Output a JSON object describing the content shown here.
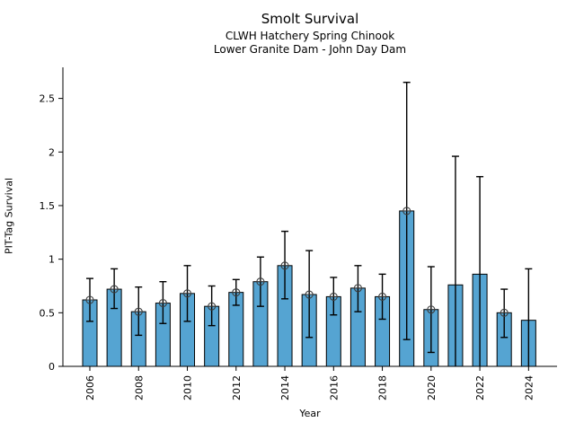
{
  "figure": {
    "title": "Smolt Survival",
    "subtitle1": "CLWH Hatchery Spring Chinook",
    "subtitle2": "Lower Granite Dam - John Day Dam",
    "xlabel": "Year",
    "ylabel": "PIT-Tag Survival"
  },
  "chart_data": {
    "type": "bar",
    "title": "Smolt Survival",
    "subtitle": [
      "CLWH Hatchery Spring Chinook",
      "Lower Granite Dam - John Day Dam"
    ],
    "xlabel": "Year",
    "ylabel": "PIT-Tag Survival",
    "categories": [
      2006,
      2007,
      2008,
      2009,
      2010,
      2011,
      2012,
      2013,
      2014,
      2015,
      2016,
      2017,
      2018,
      2019,
      2020,
      2021,
      2022,
      2023,
      2024
    ],
    "values": [
      0.62,
      0.72,
      0.51,
      0.59,
      0.68,
      0.56,
      0.69,
      0.79,
      0.94,
      0.67,
      0.65,
      0.73,
      0.65,
      1.45,
      0.53,
      0.76,
      0.86,
      0.5,
      0.43
    ],
    "error_low": [
      0.42,
      0.54,
      0.29,
      0.4,
      0.42,
      0.38,
      0.57,
      0.56,
      0.63,
      0.27,
      0.48,
      0.51,
      0.44,
      0.25,
      0.13,
      0.0,
      0.0,
      0.27,
      0.0
    ],
    "error_high": [
      0.82,
      0.91,
      0.74,
      0.79,
      0.94,
      0.75,
      0.81,
      1.02,
      1.26,
      1.08,
      0.83,
      0.94,
      0.86,
      2.65,
      0.93,
      1.96,
      1.77,
      0.72,
      0.91
    ],
    "has_marker": [
      true,
      true,
      true,
      true,
      true,
      true,
      true,
      true,
      true,
      true,
      true,
      true,
      true,
      true,
      true,
      false,
      false,
      true,
      false
    ],
    "yticks": [
      0,
      0.5,
      1,
      1.5,
      2,
      2.5
    ],
    "ytick_labels": [
      "0",
      "0.5",
      "1",
      "1.5",
      "2",
      "2.5"
    ],
    "xtick_years": [
      2006,
      2008,
      2010,
      2012,
      2014,
      2016,
      2018,
      2020,
      2022,
      2024
    ],
    "ylim": [
      0,
      2.79
    ],
    "grid": false,
    "legend": null,
    "bar_color": "#55a4d2",
    "bar_edge_color": "#000000",
    "error_color": "#000000",
    "marker_edge_color": "#3d3d3d",
    "background": "#ffffff"
  }
}
